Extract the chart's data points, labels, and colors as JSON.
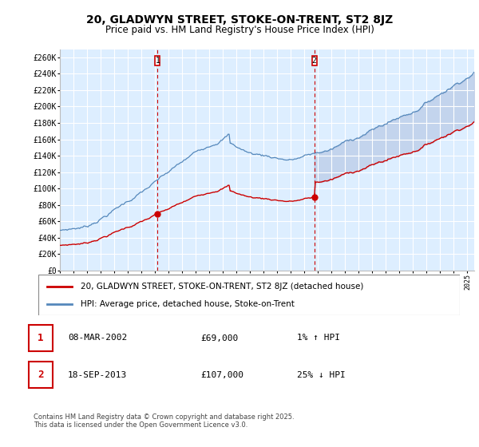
{
  "title": "20, GLADWYN STREET, STOKE-ON-TRENT, ST2 8JZ",
  "subtitle": "Price paid vs. HM Land Registry's House Price Index (HPI)",
  "ylabel_ticks": [
    "£0",
    "£20K",
    "£40K",
    "£60K",
    "£80K",
    "£100K",
    "£120K",
    "£140K",
    "£160K",
    "£180K",
    "£200K",
    "£220K",
    "£240K",
    "£260K"
  ],
  "ylim": [
    0,
    270000
  ],
  "ytick_values": [
    0,
    20000,
    40000,
    60000,
    80000,
    100000,
    120000,
    140000,
    160000,
    180000,
    200000,
    220000,
    240000,
    260000
  ],
  "sale1": {
    "date_num": 2002.19,
    "price": 69000,
    "label": "1",
    "date_str": "08-MAR-2002",
    "price_str": "£69,000",
    "hpi_str": "1% ↑ HPI"
  },
  "sale2": {
    "date_num": 2013.72,
    "price": 107000,
    "label": "2",
    "date_str": "18-SEP-2013",
    "price_str": "£107,000",
    "hpi_str": "25% ↓ HPI"
  },
  "legend_line1": "20, GLADWYN STREET, STOKE-ON-TRENT, ST2 8JZ (detached house)",
  "legend_line2": "HPI: Average price, detached house, Stoke-on-Trent",
  "footer": "Contains HM Land Registry data © Crown copyright and database right 2025.\nThis data is licensed under the Open Government Licence v3.0.",
  "line_color_red": "#cc0000",
  "line_color_blue": "#5588bb",
  "fill_color_blue": "#aabbdd",
  "bg_color": "#ddeeff",
  "grid_color": "#ffffff",
  "vline_color": "#cc0000",
  "marker_color": "#cc0000"
}
